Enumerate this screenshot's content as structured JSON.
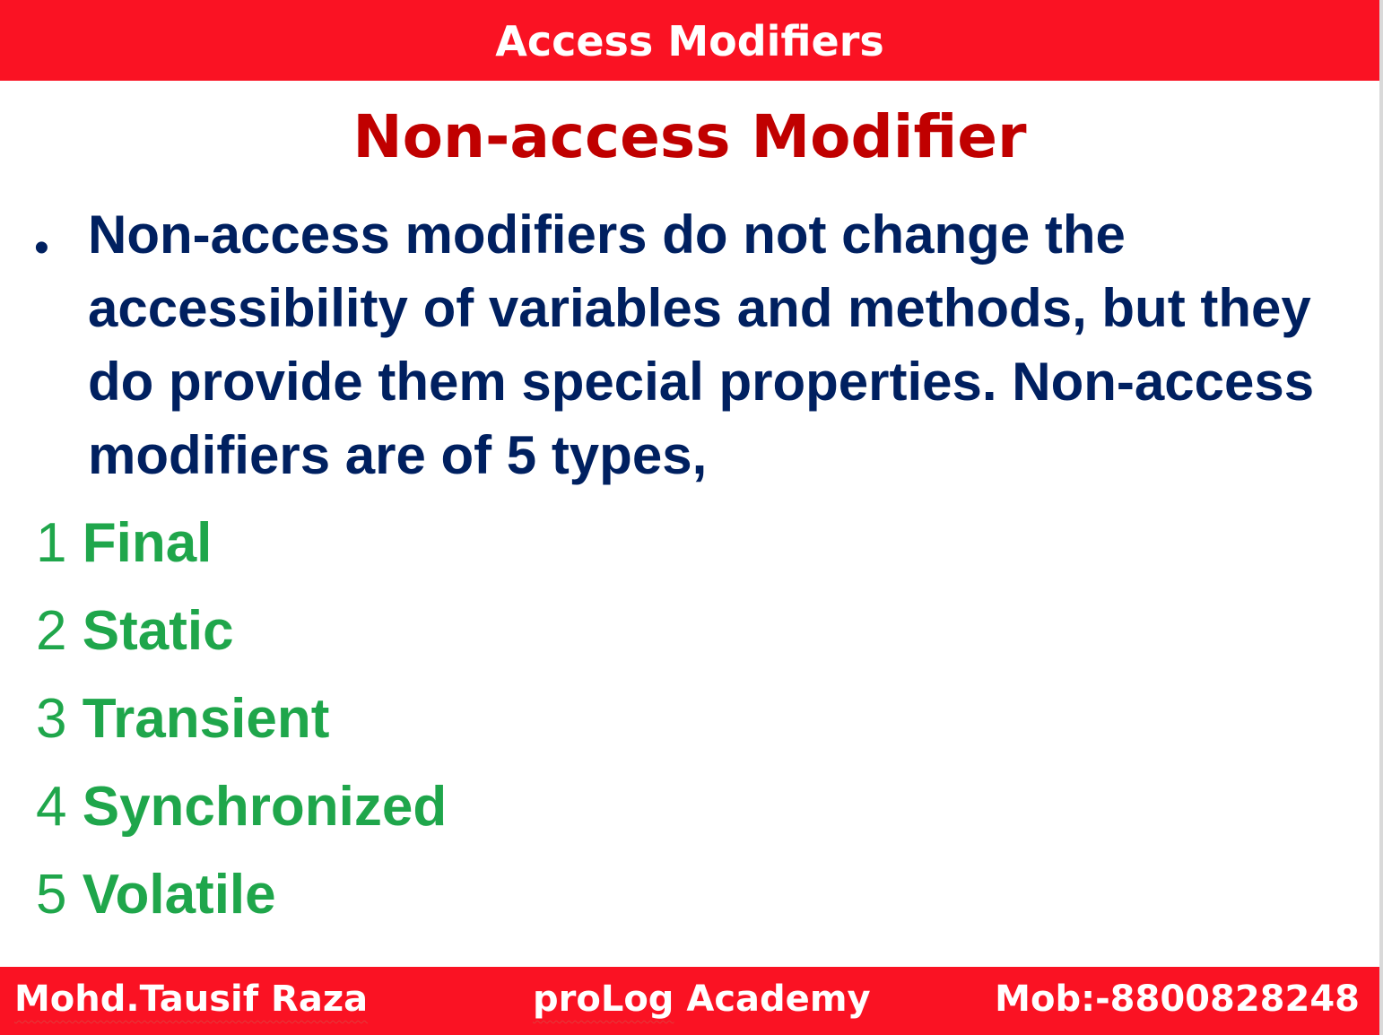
{
  "header": {
    "title": "Access Modifiers"
  },
  "slide": {
    "title": "Non-access Modifier",
    "bullet_symbol": "•",
    "paragraph": "Non-access modifiers do not change the accessibility of variables and methods, but they do provide them special properties. Non-access modifiers are of 5 types,",
    "types": [
      {
        "number": "1",
        "name": "Final"
      },
      {
        "number": "2",
        "name": "Static"
      },
      {
        "number": "3",
        "name": "Transient"
      },
      {
        "number": "4",
        "name": "Synchronized"
      },
      {
        "number": "5",
        "name": "Volatile"
      }
    ]
  },
  "footer": {
    "author": "Mohd.Tausif Raza",
    "academy_name": "proLog",
    "academy_suffix": "Academy",
    "phone": "Mob:-8800828248"
  },
  "colors": {
    "bar": "#fa1223",
    "slide_title": "#c00000",
    "paragraph_text": "#002060",
    "list_text": "#1fa64b",
    "bar_text": "#ffffff"
  }
}
